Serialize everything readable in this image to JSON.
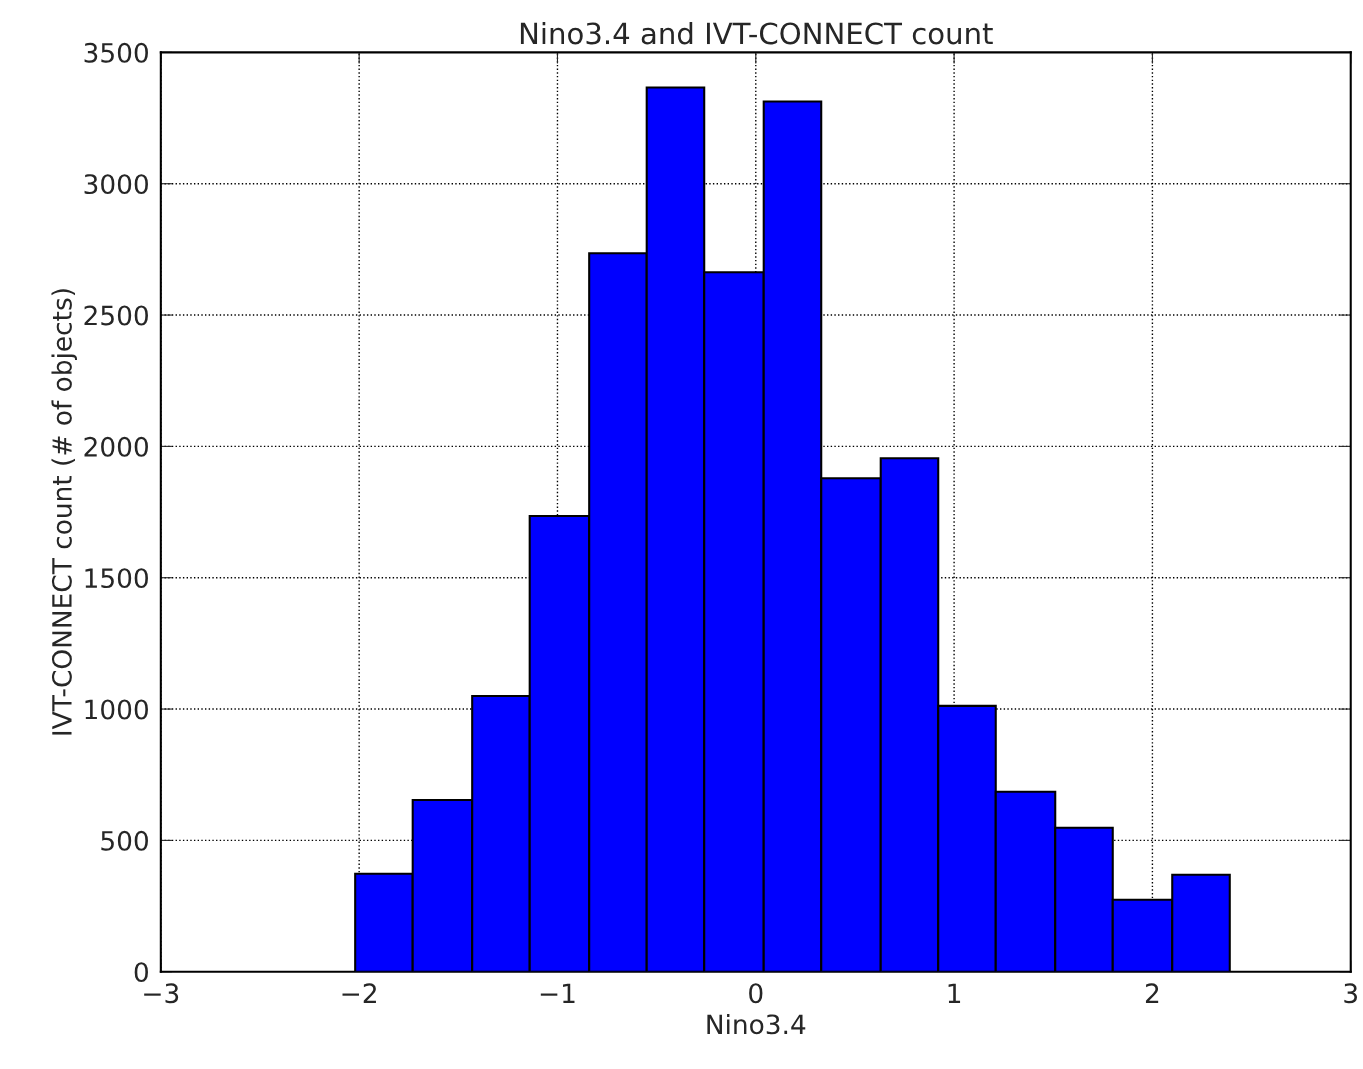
{
  "chart_data": {
    "type": "histogram",
    "title": "Nino3.4 and IVT-CONNECT count",
    "xlabel": "Nino3.4",
    "ylabel": "IVT-CONNECT count (# of objects)",
    "bins": [
      -2.02,
      -1.73,
      -1.43,
      -1.14,
      -0.84,
      -0.55,
      -0.26,
      0.04,
      0.33,
      0.63,
      0.92,
      1.21,
      1.51,
      1.8,
      2.1,
      2.39
    ],
    "values": [
      373,
      654,
      1050,
      1735,
      2735,
      3366,
      2663,
      3313,
      1879,
      1955,
      1012,
      685,
      548,
      274,
      369
    ],
    "color": "#0000ff",
    "xlim": [
      -3,
      3
    ],
    "xticks": [
      {
        "value": -3,
        "label": "−3"
      },
      {
        "value": -2,
        "label": "−2"
      },
      {
        "value": -1,
        "label": "−1"
      },
      0,
      1,
      2,
      3
    ],
    "ylim": [
      0,
      3500
    ],
    "yticks": [
      0,
      500,
      1000,
      1500,
      2000,
      2500,
      3000,
      3500
    ],
    "grid": true
  }
}
